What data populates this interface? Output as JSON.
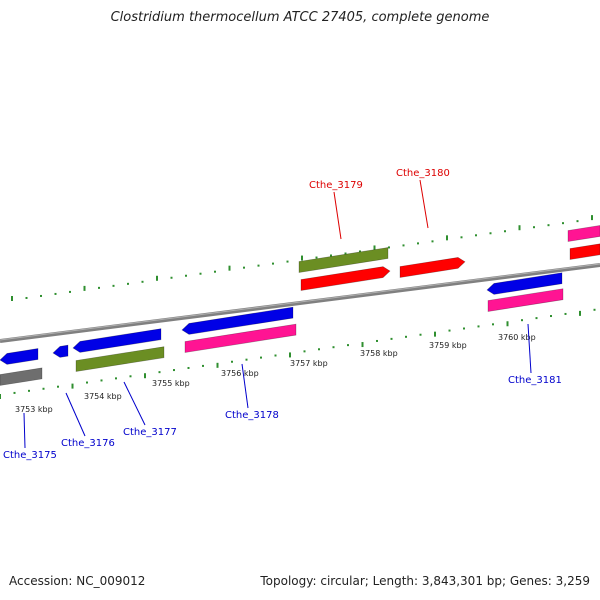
{
  "title": "Clostridium thermocellum ATCC 27405, complete genome",
  "footer": {
    "accession": "Accession: NC_009012",
    "stats": "Topology: circular; Length: 3,843,301 bp; Genes: 3,259"
  },
  "colors": {
    "backbone": "#808080",
    "tick": "#2f8f2f",
    "blue": "#0000e6",
    "red": "#ff0000",
    "olive": "#6b8e23",
    "magenta": "#ff1493",
    "gray": "#6e6e6e",
    "label_blue": "#0000cc",
    "label_red": "#dd0000"
  },
  "kbp_labels": [
    "3753 kbp",
    "3754 kbp",
    "3755 kbp",
    "3756 kbp",
    "3757 kbp",
    "3758 kbp",
    "3759 kbp",
    "3760 kbp"
  ],
  "genes": [
    {
      "label": "Cthe_3175",
      "color": "label_blue"
    },
    {
      "label": "Cthe_3176",
      "color": "label_blue"
    },
    {
      "label": "Cthe_3177",
      "color": "label_blue"
    },
    {
      "label": "Cthe_3178",
      "color": "label_blue"
    },
    {
      "label": "Cthe_3179",
      "color": "label_red"
    },
    {
      "label": "Cthe_3180",
      "color": "label_red"
    },
    {
      "label": "Cthe_3181",
      "color": "label_blue"
    }
  ]
}
